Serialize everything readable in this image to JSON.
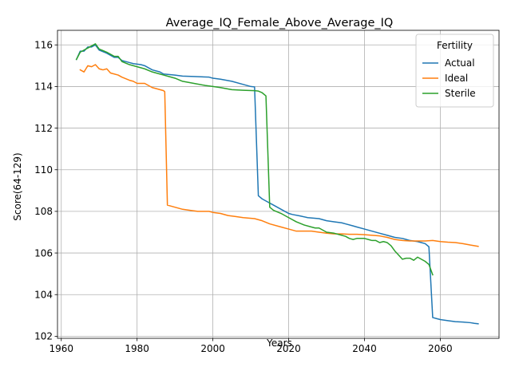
{
  "chart_data": {
    "type": "line",
    "title": "Average_IQ_Female_Above_Average_IQ",
    "xlabel": "Years",
    "ylabel": "Score(64-129)",
    "xlim": [
      1959,
      2075.5
    ],
    "ylim": [
      101.9,
      116.7
    ],
    "xticks": [
      1960,
      1980,
      2000,
      2020,
      2040,
      2060
    ],
    "yticks": [
      102,
      104,
      106,
      108,
      110,
      112,
      114,
      116
    ],
    "grid": true,
    "legend": {
      "title": "Fertility",
      "placement": "top-right"
    },
    "series": [
      {
        "name": "Actual",
        "color": "#1f77b4",
        "points": [
          [
            1964,
            115.3
          ],
          [
            1965,
            115.7
          ],
          [
            1966,
            115.7
          ],
          [
            1967,
            115.9
          ],
          [
            1968,
            115.9
          ],
          [
            1969,
            116.0
          ],
          [
            1970,
            115.75
          ],
          [
            1972,
            115.6
          ],
          [
            1974,
            115.4
          ],
          [
            1975,
            115.4
          ],
          [
            1976,
            115.25
          ],
          [
            1978,
            115.15
          ],
          [
            1979,
            115.1
          ],
          [
            1981,
            115.05
          ],
          [
            1982,
            115.0
          ],
          [
            1984,
            114.8
          ],
          [
            1986,
            114.7
          ],
          [
            1987,
            114.6
          ],
          [
            1990,
            114.55
          ],
          [
            1992,
            114.5
          ],
          [
            1995,
            114.48
          ],
          [
            1999,
            114.45
          ],
          [
            2000,
            114.4
          ],
          [
            2002,
            114.35
          ],
          [
            2005,
            114.25
          ],
          [
            2008,
            114.1
          ],
          [
            2010,
            114.0
          ],
          [
            2011,
            113.98
          ],
          [
            2012,
            108.75
          ],
          [
            2013,
            108.6
          ],
          [
            2014,
            108.5
          ],
          [
            2015,
            108.4
          ],
          [
            2016,
            108.3
          ],
          [
            2017,
            108.2
          ],
          [
            2018,
            108.1
          ],
          [
            2019,
            108.0
          ],
          [
            2020,
            107.9
          ],
          [
            2021,
            107.85
          ],
          [
            2023,
            107.78
          ],
          [
            2025,
            107.7
          ],
          [
            2028,
            107.65
          ],
          [
            2030,
            107.55
          ],
          [
            2032,
            107.5
          ],
          [
            2034,
            107.45
          ],
          [
            2035,
            107.4
          ],
          [
            2037,
            107.3
          ],
          [
            2038,
            107.25
          ],
          [
            2040,
            107.15
          ],
          [
            2042,
            107.05
          ],
          [
            2044,
            106.95
          ],
          [
            2046,
            106.85
          ],
          [
            2048,
            106.75
          ],
          [
            2050,
            106.7
          ],
          [
            2052,
            106.6
          ],
          [
            2054,
            106.55
          ],
          [
            2055,
            106.5
          ],
          [
            2056,
            106.45
          ],
          [
            2057,
            106.3
          ],
          [
            2058,
            102.9
          ],
          [
            2059,
            102.85
          ],
          [
            2060,
            102.8
          ],
          [
            2062,
            102.75
          ],
          [
            2064,
            102.7
          ],
          [
            2066,
            102.68
          ],
          [
            2068,
            102.65
          ],
          [
            2069,
            102.62
          ],
          [
            2070,
            102.6
          ]
        ]
      },
      {
        "name": "Ideal",
        "color": "#ff7f0e",
        "points": [
          [
            1965,
            114.8
          ],
          [
            1966,
            114.7
          ],
          [
            1967,
            115.0
          ],
          [
            1968,
            114.95
          ],
          [
            1969,
            115.05
          ],
          [
            1970,
            114.85
          ],
          [
            1971,
            114.8
          ],
          [
            1972,
            114.85
          ],
          [
            1973,
            114.65
          ],
          [
            1975,
            114.55
          ],
          [
            1976,
            114.45
          ],
          [
            1978,
            114.3
          ],
          [
            1979,
            114.25
          ],
          [
            1980,
            114.15
          ],
          [
            1982,
            114.15
          ],
          [
            1984,
            113.95
          ],
          [
            1985,
            113.9
          ],
          [
            1987,
            113.8
          ],
          [
            1987.3,
            113.75
          ],
          [
            1988,
            108.3
          ],
          [
            1990,
            108.2
          ],
          [
            1992,
            108.1
          ],
          [
            1994,
            108.05
          ],
          [
            1996,
            108.0
          ],
          [
            1997,
            108.0
          ],
          [
            1999,
            108.0
          ],
          [
            2000,
            107.95
          ],
          [
            2002,
            107.9
          ],
          [
            2004,
            107.8
          ],
          [
            2006,
            107.75
          ],
          [
            2008,
            107.7
          ],
          [
            2011,
            107.65
          ],
          [
            2013,
            107.55
          ],
          [
            2015,
            107.4
          ],
          [
            2018,
            107.25
          ],
          [
            2020,
            107.15
          ],
          [
            2022,
            107.05
          ],
          [
            2024,
            107.05
          ],
          [
            2026,
            107.05
          ],
          [
            2028,
            107.0
          ],
          [
            2030,
            106.95
          ],
          [
            2032,
            106.92
          ],
          [
            2034,
            106.92
          ],
          [
            2036,
            106.9
          ],
          [
            2038,
            106.9
          ],
          [
            2040,
            106.88
          ],
          [
            2042,
            106.85
          ],
          [
            2044,
            106.82
          ],
          [
            2046,
            106.75
          ],
          [
            2048,
            106.65
          ],
          [
            2050,
            106.6
          ],
          [
            2052,
            106.58
          ],
          [
            2054,
            106.58
          ],
          [
            2056,
            106.58
          ],
          [
            2058,
            106.6
          ],
          [
            2060,
            106.55
          ],
          [
            2062,
            106.52
          ],
          [
            2064,
            106.5
          ],
          [
            2066,
            106.45
          ],
          [
            2068,
            106.38
          ],
          [
            2070,
            106.32
          ]
        ]
      },
      {
        "name": "Sterile",
        "color": "#2ca02c",
        "points": [
          [
            1964,
            115.3
          ],
          [
            1965,
            115.65
          ],
          [
            1966,
            115.75
          ],
          [
            1967,
            115.85
          ],
          [
            1968,
            115.95
          ],
          [
            1969,
            116.05
          ],
          [
            1970,
            115.8
          ],
          [
            1972,
            115.65
          ],
          [
            1974,
            115.45
          ],
          [
            1975,
            115.45
          ],
          [
            1976,
            115.2
          ],
          [
            1978,
            115.05
          ],
          [
            1980,
            114.95
          ],
          [
            1982,
            114.85
          ],
          [
            1984,
            114.7
          ],
          [
            1986,
            114.6
          ],
          [
            1987,
            114.55
          ],
          [
            1988,
            114.5
          ],
          [
            1990,
            114.4
          ],
          [
            1992,
            114.25
          ],
          [
            1995,
            114.15
          ],
          [
            1998,
            114.05
          ],
          [
            2000,
            114.0
          ],
          [
            2002,
            113.95
          ],
          [
            2005,
            113.85
          ],
          [
            2008,
            113.82
          ],
          [
            2011,
            113.8
          ],
          [
            2012,
            113.78
          ],
          [
            2013,
            113.7
          ],
          [
            2014,
            113.55
          ],
          [
            2015,
            108.2
          ],
          [
            2016,
            108.05
          ],
          [
            2018,
            107.9
          ],
          [
            2020,
            107.7
          ],
          [
            2022,
            107.5
          ],
          [
            2024,
            107.35
          ],
          [
            2026,
            107.25
          ],
          [
            2027,
            107.2
          ],
          [
            2028,
            107.2
          ],
          [
            2030,
            107.0
          ],
          [
            2032,
            106.95
          ],
          [
            2034,
            106.85
          ],
          [
            2035,
            106.8
          ],
          [
            2036,
            106.7
          ],
          [
            2037,
            106.65
          ],
          [
            2038,
            106.7
          ],
          [
            2039,
            106.7
          ],
          [
            2040,
            106.7
          ],
          [
            2041,
            106.65
          ],
          [
            2042,
            106.6
          ],
          [
            2043,
            106.6
          ],
          [
            2044,
            106.5
          ],
          [
            2045,
            106.55
          ],
          [
            2046,
            106.5
          ],
          [
            2047,
            106.35
          ],
          [
            2048,
            106.1
          ],
          [
            2049,
            105.9
          ],
          [
            2050,
            105.7
          ],
          [
            2051,
            105.75
          ],
          [
            2052,
            105.75
          ],
          [
            2053,
            105.65
          ],
          [
            2054,
            105.8
          ],
          [
            2055,
            105.7
          ],
          [
            2056,
            105.6
          ],
          [
            2057,
            105.45
          ],
          [
            2058,
            104.95
          ]
        ]
      }
    ]
  }
}
